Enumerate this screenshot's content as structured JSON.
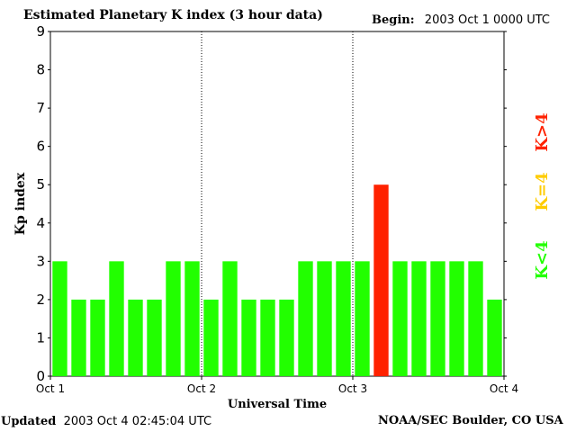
{
  "header": {
    "title": "Estimated Planetary K index (3 hour data)",
    "begin_label": "Begin:",
    "begin_value": "2003 Oct 1 0000 UTC"
  },
  "footer": {
    "updated_label": "Updated",
    "updated_value": "2003 Oct  4 02:45:04 UTC",
    "credit": "NOAA/SEC Boulder, CO USA"
  },
  "legend": [
    {
      "label": "K<4",
      "color": "#22ff00"
    },
    {
      "label": "K=4",
      "color": "#ffcc00"
    },
    {
      "label": "K>4",
      "color": "#ff2200"
    }
  ],
  "chart_data": {
    "type": "bar",
    "title": "Estimated Planetary K index (3 hour data)",
    "xlabel": "Universal Time",
    "ylabel": "Kp index",
    "ylim": [
      0,
      9
    ],
    "yticks": [
      "0",
      "1",
      "2",
      "3",
      "4",
      "5",
      "6",
      "7",
      "8",
      "9"
    ],
    "xticks": [
      "Oct 1",
      "Oct 2",
      "Oct 3",
      "Oct 4"
    ],
    "grid": "dotted vertical lines at day boundaries",
    "series": [
      {
        "values": [
          3,
          2,
          2,
          3,
          2,
          2,
          3,
          3,
          2,
          3,
          2,
          2,
          2,
          3,
          3,
          3,
          3,
          5,
          3,
          3,
          3,
          3,
          3,
          2
        ]
      }
    ],
    "colors": {
      "low": "#22ff00",
      "equal": "#ffcc00",
      "high": "#ff2200"
    }
  }
}
